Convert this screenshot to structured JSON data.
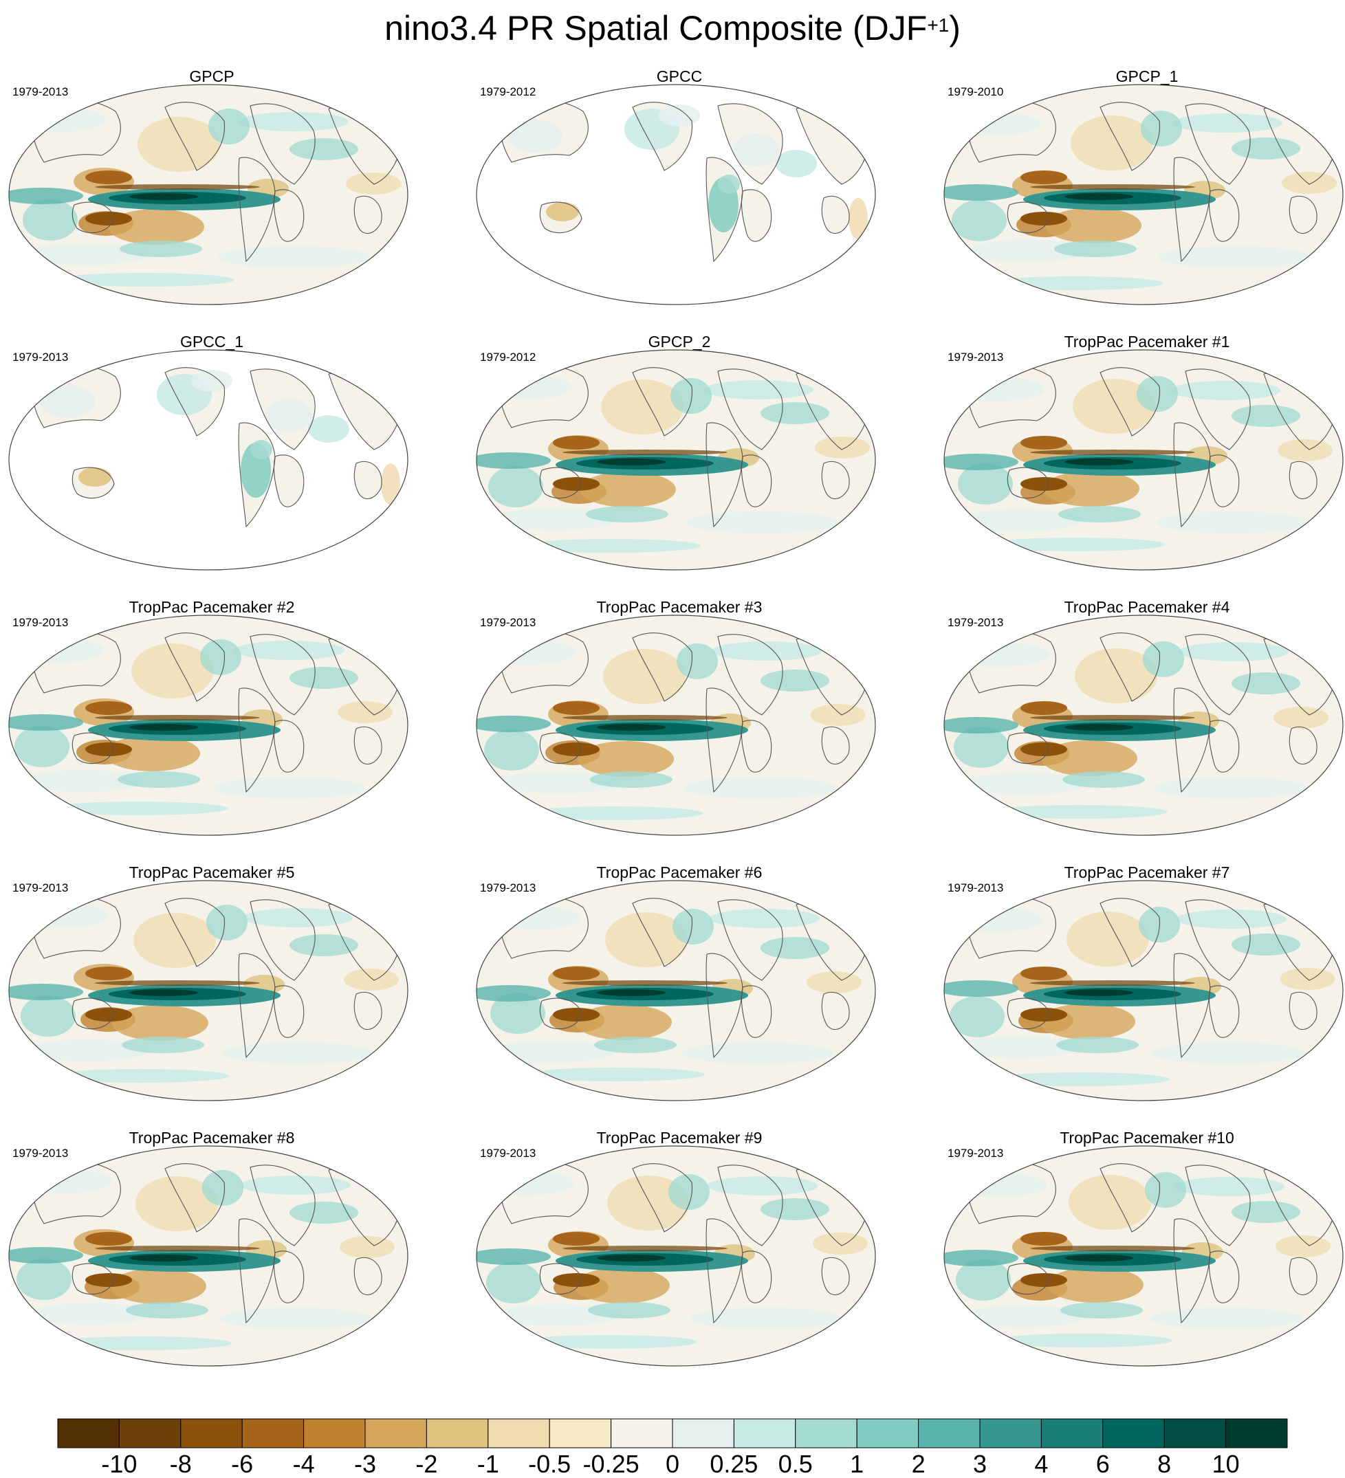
{
  "title": {
    "text": "nino3.4 PR Spatial Composite (DJF",
    "superscript": "+1",
    "suffix": ")"
  },
  "panels": [
    {
      "name": "GPCP",
      "period": "1979-2013",
      "land_only": false
    },
    {
      "name": "GPCC",
      "period": "1979-2012",
      "land_only": true
    },
    {
      "name": "GPCP_1",
      "period": "1979-2010",
      "land_only": false
    },
    {
      "name": "GPCC_1",
      "period": "1979-2013",
      "land_only": true
    },
    {
      "name": "GPCP_2",
      "period": "1979-2012",
      "land_only": false
    },
    {
      "name": "TropPac Pacemaker #1",
      "period": "1979-2013",
      "land_only": false
    },
    {
      "name": "TropPac Pacemaker #2",
      "period": "1979-2013",
      "land_only": false
    },
    {
      "name": "TropPac Pacemaker #3",
      "period": "1979-2013",
      "land_only": false
    },
    {
      "name": "TropPac Pacemaker #4",
      "period": "1979-2013",
      "land_only": false
    },
    {
      "name": "TropPac Pacemaker #5",
      "period": "1979-2013",
      "land_only": false
    },
    {
      "name": "TropPac Pacemaker #6",
      "period": "1979-2013",
      "land_only": false
    },
    {
      "name": "TropPac Pacemaker #7",
      "period": "1979-2013",
      "land_only": false
    },
    {
      "name": "TropPac Pacemaker #8",
      "period": "1979-2013",
      "land_only": false
    },
    {
      "name": "TropPac Pacemaker #9",
      "period": "1979-2013",
      "land_only": false
    },
    {
      "name": "TropPac Pacemaker #10",
      "period": "1979-2013",
      "land_only": false
    }
  ],
  "colorbar": {
    "labels": [
      "-10",
      "-8",
      "-6",
      "-4",
      "-3",
      "-2",
      "-1",
      "-0.5",
      "-0.25",
      "0",
      "0.25",
      "0.5",
      "1",
      "2",
      "3",
      "4",
      "6",
      "8",
      "10"
    ],
    "colors": [
      "#543005",
      "#6e400a",
      "#8c510a",
      "#a6651a",
      "#bf812d",
      "#d4a65b",
      "#dfc27d",
      "#f0dcb0",
      "#f6e8c3",
      "#f5f2ea",
      "#e4f0ee",
      "#c7eae5",
      "#a4dbd2",
      "#80cdc1",
      "#5ab4ac",
      "#35978f",
      "#1a7f76",
      "#01665e",
      "#004e44",
      "#003c30"
    ]
  }
}
